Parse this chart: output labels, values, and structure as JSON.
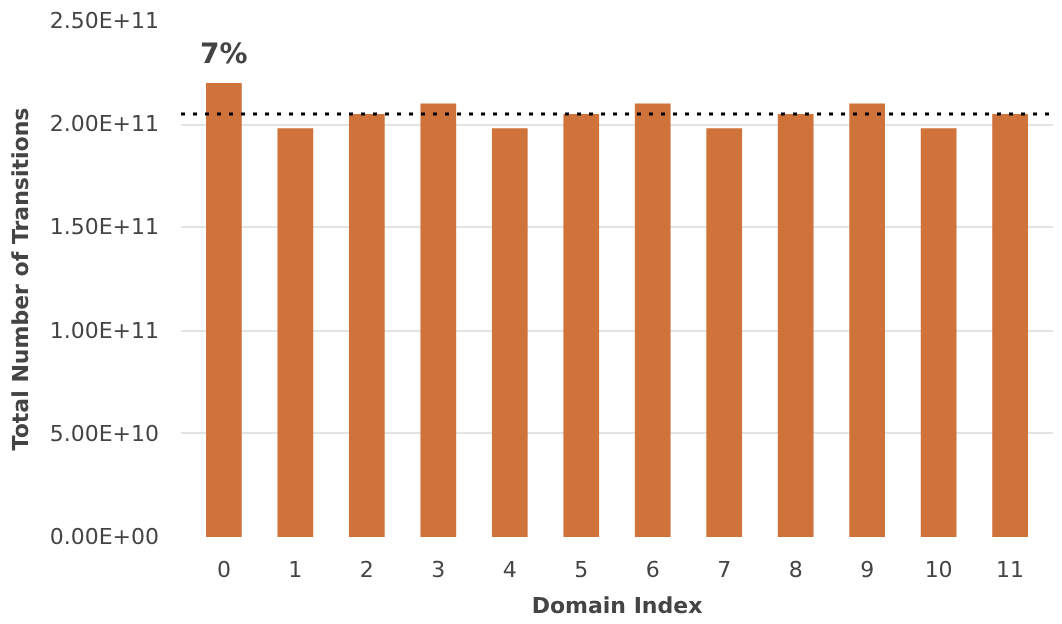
{
  "chart_data": {
    "type": "bar",
    "xlabel": "Domain Index",
    "ylabel": "Total Number of Transitions",
    "categories": [
      "0",
      "1",
      "2",
      "3",
      "4",
      "5",
      "6",
      "7",
      "8",
      "9",
      "10",
      "11"
    ],
    "values": [
      220000000000.0,
      198000000000.0,
      205000000000.0,
      210000000000.0,
      198000000000.0,
      205000000000.0,
      210000000000.0,
      198000000000.0,
      205000000000.0,
      210000000000.0,
      198000000000.0,
      205000000000.0
    ],
    "color": "#d0733a",
    "ylim": [
      0,
      250000000000.0
    ],
    "yticks": [
      {
        "value": 0,
        "label": "0.00E+00"
      },
      {
        "value": 50000000000.0,
        "label": "5.00E+10"
      },
      {
        "value": 100000000000.0,
        "label": "1.00E+11"
      },
      {
        "value": 150000000000.0,
        "label": "1.50E+11"
      },
      {
        "value": 200000000000.0,
        "label": "2.00E+11"
      },
      {
        "value": 250000000000.0,
        "label": "2.50E+11"
      }
    ],
    "grid": "y",
    "ref_lines": [
      {
        "axis": "y",
        "value": 205000000000.0,
        "line_style": "dotted",
        "color": "#000000"
      }
    ],
    "annotations": [
      {
        "text": "7%",
        "x": "0",
        "y": 220000000000.0
      }
    ]
  }
}
